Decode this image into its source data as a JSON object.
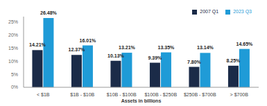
{
  "chart_data": {
    "type": "bar",
    "x_label": "Assets in billions",
    "categories": [
      "< $1B",
      "$1B - $10B",
      "$10B - $100B",
      "$100B - $250B",
      "$250B - $700B",
      "> $700B"
    ],
    "series": [
      {
        "name": "2007 Q1",
        "color": "#1b2b48",
        "values": [
          14.21,
          12.37,
          10.13,
          9.39,
          7.8,
          8.25
        ],
        "value_labels": [
          "14.21%",
          "12.37%",
          "10.13%",
          "9.39%",
          "7.80%",
          "8.25%"
        ]
      },
      {
        "name": "2023 Q3",
        "color": "#1f9bd7",
        "values": [
          26.48,
          16.01,
          13.21,
          13.35,
          13.14,
          14.65
        ],
        "value_labels": [
          "26.48%",
          "16.01%",
          "13.21%",
          "13.35%",
          "13.14%",
          "14.65%"
        ]
      }
    ],
    "ylim": [
      0,
      27
    ],
    "yticks": [
      {
        "value": 0,
        "label": "0%"
      },
      {
        "value": 5,
        "label": "5%"
      },
      {
        "value": 10,
        "label": "10%"
      },
      {
        "value": 15,
        "label": "15%"
      },
      {
        "value": 20,
        "label": "20%"
      },
      {
        "value": 25,
        "label": "25%"
      }
    ],
    "grid": false,
    "legend": "top-right",
    "data_labels": true
  }
}
